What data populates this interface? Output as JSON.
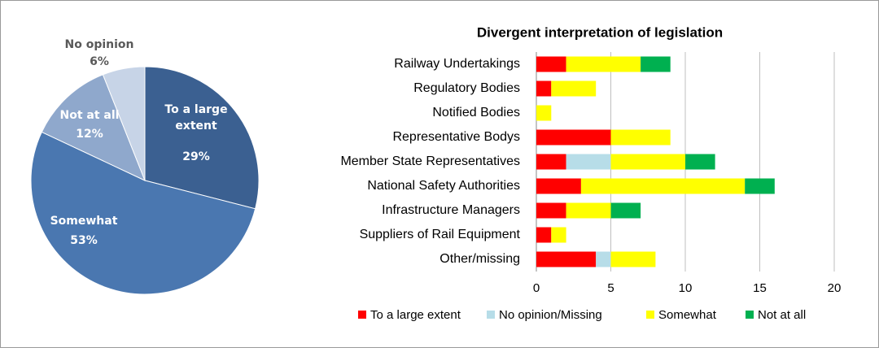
{
  "chart_data": [
    {
      "type": "pie",
      "categories": [
        "To a large extent",
        "Somewhat",
        "Not at all",
        "No opinion"
      ],
      "values": [
        29,
        53,
        12,
        6
      ],
      "value_labels": [
        "29%",
        "53%",
        "12%",
        "6%"
      ],
      "colors": [
        "#3b6091",
        "#4a77b0",
        "#8fa8cc",
        "#c7d4e7"
      ]
    },
    {
      "type": "stacked-bar-horizontal",
      "title": "Divergent interpretation of legislation",
      "categories": [
        "Railway Undertakings",
        "Regulatory Bodies",
        "Notified Bodies",
        "Representative Bodys",
        "Member State Representatives",
        "National Safety Authorities",
        "Infrastructure Managers",
        "Suppliers of Rail Equipment",
        "Other/missing"
      ],
      "series": [
        {
          "name": "To a large extent",
          "color": "#ff0000",
          "values": [
            2,
            1,
            0,
            5,
            2,
            3,
            2,
            1,
            4
          ]
        },
        {
          "name": "No opinion/Missing",
          "color": "#b7dde8",
          "values": [
            0,
            0,
            0,
            0,
            3,
            0,
            0,
            0,
            1
          ]
        },
        {
          "name": "Somewhat",
          "color": "#ffff00",
          "values": [
            5,
            3,
            1,
            4,
            5,
            11,
            3,
            1,
            3
          ]
        },
        {
          "name": "Not at all",
          "color": "#00b050",
          "values": [
            2,
            0,
            0,
            0,
            2,
            2,
            2,
            0,
            0
          ]
        }
      ],
      "xlim": [
        0,
        20
      ],
      "xticks": [
        0,
        5,
        10,
        15,
        20
      ],
      "grid": true,
      "legend": "bottom"
    }
  ]
}
